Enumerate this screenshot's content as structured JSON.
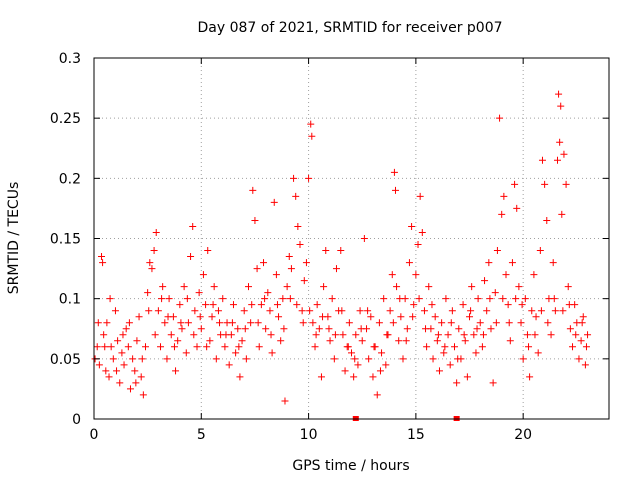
{
  "chart_data": {
    "type": "scatter",
    "title": "Day 087 of 2021, SRMTID for receiver p007",
    "xlabel": "GPS time / hours",
    "ylabel": "SRMTID / TECUs",
    "xlim": [
      0,
      24
    ],
    "ylim": [
      0,
      0.3
    ],
    "xticks": [
      0,
      5,
      10,
      15,
      20
    ],
    "xtick_labels": [
      "0",
      "5",
      "10",
      "15",
      "20"
    ],
    "yticks": [
      0,
      0.05,
      0.1,
      0.15,
      0.2,
      0.25,
      0.3
    ],
    "ytick_labels": [
      "0",
      "0.05",
      "0.1",
      "0.15",
      "0.2",
      "0.25",
      "0.3"
    ],
    "grid": true,
    "marker": "plus",
    "color": "#ff0000",
    "series": [
      {
        "name": "SRMTID",
        "points": [
          [
            0.05,
            0.05
          ],
          [
            0.15,
            0.06
          ],
          [
            0.25,
            0.045
          ],
          [
            0.35,
            0.135
          ],
          [
            0.4,
            0.13
          ],
          [
            0.45,
            0.07
          ],
          [
            0.55,
            0.04
          ],
          [
            0.6,
            0.08
          ],
          [
            0.7,
            0.035
          ],
          [
            0.8,
            0.06
          ],
          [
            0.9,
            0.05
          ],
          [
            1.0,
            0.09
          ],
          [
            1.1,
            0.065
          ],
          [
            1.2,
            0.03
          ],
          [
            1.3,
            0.055
          ],
          [
            1.4,
            0.045
          ],
          [
            1.5,
            0.075
          ],
          [
            1.6,
            0.06
          ],
          [
            1.7,
            0.025
          ],
          [
            1.8,
            0.05
          ],
          [
            1.9,
            0.04
          ],
          [
            2.0,
            0.065
          ],
          [
            2.1,
            0.085
          ],
          [
            2.2,
            0.035
          ],
          [
            2.3,
            0.02
          ],
          [
            2.4,
            0.06
          ],
          [
            2.5,
            0.105
          ],
          [
            2.6,
            0.13
          ],
          [
            2.7,
            0.125
          ],
          [
            2.8,
            0.14
          ],
          [
            2.9,
            0.155
          ],
          [
            3.0,
            0.09
          ],
          [
            3.1,
            0.06
          ],
          [
            3.2,
            0.11
          ],
          [
            3.3,
            0.08
          ],
          [
            3.4,
            0.05
          ],
          [
            3.5,
            0.1
          ],
          [
            3.6,
            0.07
          ],
          [
            3.7,
            0.085
          ],
          [
            3.8,
            0.04
          ],
          [
            3.9,
            0.065
          ],
          [
            4.0,
            0.095
          ],
          [
            4.1,
            0.075
          ],
          [
            4.2,
            0.11
          ],
          [
            4.3,
            0.055
          ],
          [
            4.4,
            0.08
          ],
          [
            4.5,
            0.135
          ],
          [
            4.6,
            0.16
          ],
          [
            4.7,
            0.09
          ],
          [
            4.8,
            0.06
          ],
          [
            4.9,
            0.105
          ],
          [
            5.0,
            0.075
          ],
          [
            5.1,
            0.12
          ],
          [
            5.2,
            0.095
          ],
          [
            5.3,
            0.14
          ],
          [
            5.4,
            0.065
          ],
          [
            5.5,
            0.085
          ],
          [
            5.6,
            0.11
          ],
          [
            5.7,
            0.05
          ],
          [
            5.8,
            0.09
          ],
          [
            5.9,
            0.07
          ],
          [
            6.0,
            0.1
          ],
          [
            6.1,
            0.06
          ],
          [
            6.2,
            0.08
          ],
          [
            6.3,
            0.045
          ],
          [
            6.4,
            0.07
          ],
          [
            6.5,
            0.095
          ],
          [
            6.6,
            0.055
          ],
          [
            6.7,
            0.075
          ],
          [
            6.8,
            0.035
          ],
          [
            6.9,
            0.065
          ],
          [
            7.0,
            0.09
          ],
          [
            7.1,
            0.05
          ],
          [
            7.2,
            0.11
          ],
          [
            7.3,
            0.08
          ],
          [
            7.4,
            0.19
          ],
          [
            7.5,
            0.165
          ],
          [
            7.6,
            0.125
          ],
          [
            7.7,
            0.06
          ],
          [
            7.8,
            0.095
          ],
          [
            7.9,
            0.13
          ],
          [
            8.0,
            0.075
          ],
          [
            8.1,
            0.105
          ],
          [
            8.2,
            0.09
          ],
          [
            8.3,
            0.055
          ],
          [
            8.4,
            0.18
          ],
          [
            8.5,
            0.12
          ],
          [
            8.6,
            0.085
          ],
          [
            8.7,
            0.065
          ],
          [
            8.8,
            0.1
          ],
          [
            8.9,
            0.015
          ],
          [
            9.0,
            0.11
          ],
          [
            9.1,
            0.135
          ],
          [
            9.2,
            0.125
          ],
          [
            9.3,
            0.2
          ],
          [
            9.4,
            0.185
          ],
          [
            9.5,
            0.16
          ],
          [
            9.6,
            0.145
          ],
          [
            9.7,
            0.09
          ],
          [
            9.8,
            0.115
          ],
          [
            9.9,
            0.13
          ],
          [
            10.0,
            0.2
          ],
          [
            10.1,
            0.245
          ],
          [
            10.15,
            0.235
          ],
          [
            10.2,
            0.08
          ],
          [
            10.3,
            0.06
          ],
          [
            10.4,
            0.095
          ],
          [
            10.5,
            0.075
          ],
          [
            10.6,
            0.035
          ],
          [
            10.7,
            0.11
          ],
          [
            10.8,
            0.14
          ],
          [
            10.9,
            0.085
          ],
          [
            11.0,
            0.065
          ],
          [
            11.1,
            0.1
          ],
          [
            11.2,
            0.05
          ],
          [
            11.3,
            0.125
          ],
          [
            11.4,
            0.09
          ],
          [
            11.5,
            0.14
          ],
          [
            11.6,
            0.07
          ],
          [
            11.7,
            0.04
          ],
          [
            11.8,
            0.06
          ],
          [
            11.9,
            0.08
          ],
          [
            12.0,
            0.055
          ],
          [
            12.1,
            0.035
          ],
          [
            12.2,
            0.07
          ],
          [
            12.3,
            0.045
          ],
          [
            12.4,
            0.09
          ],
          [
            12.5,
            0.065
          ],
          [
            12.6,
            0.15
          ],
          [
            12.7,
            0.075
          ],
          [
            12.8,
            0.05
          ],
          [
            12.9,
            0.085
          ],
          [
            13.0,
            0.035
          ],
          [
            13.1,
            0.06
          ],
          [
            13.2,
            0.02
          ],
          [
            13.3,
            0.08
          ],
          [
            13.4,
            0.055
          ],
          [
            13.5,
            0.1
          ],
          [
            13.6,
            0.045
          ],
          [
            13.7,
            0.07
          ],
          [
            13.8,
            0.09
          ],
          [
            13.9,
            0.12
          ],
          [
            14.0,
            0.205
          ],
          [
            14.05,
            0.19
          ],
          [
            14.1,
            0.11
          ],
          [
            14.2,
            0.065
          ],
          [
            14.3,
            0.085
          ],
          [
            14.4,
            0.05
          ],
          [
            14.5,
            0.1
          ],
          [
            14.6,
            0.075
          ],
          [
            14.7,
            0.13
          ],
          [
            14.8,
            0.16
          ],
          [
            14.9,
            0.095
          ],
          [
            15.0,
            0.12
          ],
          [
            15.1,
            0.145
          ],
          [
            15.2,
            0.185
          ],
          [
            15.3,
            0.155
          ],
          [
            15.4,
            0.09
          ],
          [
            15.5,
            0.06
          ],
          [
            15.6,
            0.11
          ],
          [
            15.7,
            0.075
          ],
          [
            15.8,
            0.05
          ],
          [
            15.9,
            0.085
          ],
          [
            16.0,
            0.065
          ],
          [
            16.1,
            0.04
          ],
          [
            16.2,
            0.08
          ],
          [
            16.3,
            0.055
          ],
          [
            16.4,
            0.1
          ],
          [
            16.5,
            0.07
          ],
          [
            16.6,
            0.045
          ],
          [
            16.7,
            0.09
          ],
          [
            16.8,
            0.06
          ],
          [
            16.9,
            0.03
          ],
          [
            17.0,
            0.075
          ],
          [
            17.1,
            0.05
          ],
          [
            17.2,
            0.095
          ],
          [
            17.3,
            0.065
          ],
          [
            17.4,
            0.035
          ],
          [
            17.5,
            0.085
          ],
          [
            17.6,
            0.11
          ],
          [
            17.7,
            0.07
          ],
          [
            17.8,
            0.055
          ],
          [
            17.9,
            0.1
          ],
          [
            18.0,
            0.08
          ],
          [
            18.1,
            0.06
          ],
          [
            18.2,
            0.115
          ],
          [
            18.3,
            0.09
          ],
          [
            18.4,
            0.13
          ],
          [
            18.5,
            0.075
          ],
          [
            18.6,
            0.03
          ],
          [
            18.7,
            0.105
          ],
          [
            18.8,
            0.14
          ],
          [
            18.9,
            0.25
          ],
          [
            19.0,
            0.17
          ],
          [
            19.1,
            0.185
          ],
          [
            19.2,
            0.12
          ],
          [
            19.3,
            0.095
          ],
          [
            19.4,
            0.065
          ],
          [
            19.5,
            0.13
          ],
          [
            19.6,
            0.195
          ],
          [
            19.7,
            0.175
          ],
          [
            19.8,
            0.11
          ],
          [
            19.9,
            0.08
          ],
          [
            20.0,
            0.05
          ],
          [
            20.1,
            0.1
          ],
          [
            20.2,
            0.07
          ],
          [
            20.3,
            0.035
          ],
          [
            20.4,
            0.09
          ],
          [
            20.5,
            0.12
          ],
          [
            20.6,
            0.085
          ],
          [
            20.7,
            0.055
          ],
          [
            20.8,
            0.14
          ],
          [
            20.9,
            0.215
          ],
          [
            21.0,
            0.195
          ],
          [
            21.1,
            0.165
          ],
          [
            21.2,
            0.1
          ],
          [
            21.3,
            0.07
          ],
          [
            21.4,
            0.13
          ],
          [
            21.5,
            0.09
          ],
          [
            21.6,
            0.215
          ],
          [
            21.65,
            0.27
          ],
          [
            21.7,
            0.23
          ],
          [
            21.75,
            0.26
          ],
          [
            21.8,
            0.17
          ],
          [
            21.9,
            0.22
          ],
          [
            22.0,
            0.195
          ],
          [
            22.1,
            0.11
          ],
          [
            22.2,
            0.075
          ],
          [
            22.3,
            0.06
          ],
          [
            22.4,
            0.095
          ],
          [
            22.5,
            0.08
          ],
          [
            22.6,
            0.05
          ],
          [
            22.7,
            0.065
          ],
          [
            22.8,
            0.085
          ],
          [
            22.9,
            0.045
          ],
          [
            23.0,
            0.07
          ],
          [
            0.2,
            0.08
          ],
          [
            0.5,
            0.06
          ],
          [
            0.75,
            0.1
          ],
          [
            1.05,
            0.04
          ],
          [
            1.35,
            0.07
          ],
          [
            1.65,
            0.08
          ],
          [
            1.95,
            0.03
          ],
          [
            2.25,
            0.05
          ],
          [
            2.55,
            0.09
          ],
          [
            2.85,
            0.07
          ],
          [
            3.15,
            0.1
          ],
          [
            3.45,
            0.085
          ],
          [
            3.75,
            0.06
          ],
          [
            4.05,
            0.08
          ],
          [
            4.35,
            0.1
          ],
          [
            4.65,
            0.07
          ],
          [
            4.95,
            0.085
          ],
          [
            5.25,
            0.06
          ],
          [
            5.55,
            0.095
          ],
          [
            5.85,
            0.08
          ],
          [
            6.15,
            0.07
          ],
          [
            6.45,
            0.08
          ],
          [
            6.75,
            0.06
          ],
          [
            7.05,
            0.075
          ],
          [
            7.35,
            0.095
          ],
          [
            7.65,
            0.08
          ],
          [
            7.95,
            0.1
          ],
          [
            8.25,
            0.07
          ],
          [
            8.55,
            0.095
          ],
          [
            8.85,
            0.075
          ],
          [
            9.15,
            0.1
          ],
          [
            9.45,
            0.095
          ],
          [
            9.75,
            0.08
          ],
          [
            10.05,
            0.09
          ],
          [
            10.35,
            0.07
          ],
          [
            10.65,
            0.085
          ],
          [
            10.95,
            0.075
          ],
          [
            11.25,
            0.07
          ],
          [
            11.55,
            0.09
          ],
          [
            11.85,
            0.06
          ],
          [
            12.15,
            0.05
          ],
          [
            12.45,
            0.075
          ],
          [
            12.75,
            0.09
          ],
          [
            13.05,
            0.06
          ],
          [
            13.35,
            0.04
          ],
          [
            13.65,
            0.07
          ],
          [
            13.95,
            0.08
          ],
          [
            14.25,
            0.1
          ],
          [
            14.55,
            0.065
          ],
          [
            14.85,
            0.085
          ],
          [
            15.15,
            0.1
          ],
          [
            15.45,
            0.075
          ],
          [
            15.75,
            0.095
          ],
          [
            16.05,
            0.07
          ],
          [
            16.35,
            0.06
          ],
          [
            16.65,
            0.08
          ],
          [
            16.95,
            0.05
          ],
          [
            17.25,
            0.07
          ],
          [
            17.55,
            0.09
          ],
          [
            17.85,
            0.075
          ],
          [
            18.15,
            0.07
          ],
          [
            18.45,
            0.1
          ],
          [
            18.75,
            0.08
          ],
          [
            19.05,
            0.1
          ],
          [
            19.35,
            0.08
          ],
          [
            19.65,
            0.1
          ],
          [
            19.95,
            0.095
          ],
          [
            20.25,
            0.06
          ],
          [
            20.55,
            0.07
          ],
          [
            20.85,
            0.09
          ],
          [
            21.15,
            0.08
          ],
          [
            21.45,
            0.1
          ],
          [
            21.85,
            0.09
          ],
          [
            22.15,
            0.095
          ],
          [
            22.45,
            0.07
          ],
          [
            22.75,
            0.08
          ],
          [
            22.95,
            0.06
          ]
        ]
      }
    ],
    "gap_markers": [
      12.2,
      16.9
    ]
  }
}
